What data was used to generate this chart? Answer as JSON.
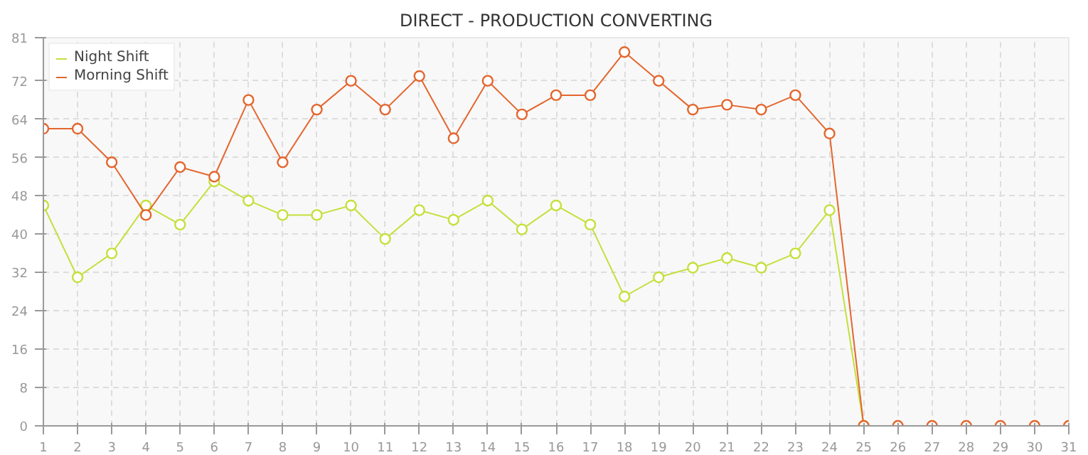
{
  "chart_data": {
    "type": "line",
    "title": "DIRECT - PRODUCTION CONVERTING",
    "x": [
      1,
      2,
      3,
      4,
      5,
      6,
      7,
      8,
      9,
      10,
      11,
      12,
      13,
      14,
      15,
      16,
      17,
      18,
      19,
      20,
      21,
      22,
      23,
      24,
      25,
      26,
      27,
      28,
      29,
      30,
      31
    ],
    "series": [
      {
        "name": "Night Shift",
        "color": "#c4e03c",
        "values": [
          46,
          31,
          36,
          46,
          42,
          51,
          47,
          44,
          44,
          46,
          39,
          45,
          43,
          47,
          41,
          46,
          42,
          27,
          31,
          33,
          35,
          33,
          36,
          45,
          0,
          null,
          null,
          null,
          null,
          null,
          null
        ]
      },
      {
        "name": "Morning Shift",
        "color": "#e4662e",
        "values": [
          62,
          62,
          55,
          44,
          54,
          52,
          68,
          55,
          66,
          72,
          66,
          73,
          60,
          72,
          65,
          69,
          69,
          78,
          72,
          66,
          67,
          66,
          69,
          61,
          0,
          0,
          0,
          0,
          0,
          0,
          0
        ]
      }
    ],
    "xlim": [
      1,
      31
    ],
    "xticks": [
      1,
      2,
      3,
      4,
      5,
      6,
      7,
      8,
      9,
      10,
      11,
      12,
      13,
      14,
      15,
      16,
      17,
      18,
      19,
      20,
      21,
      22,
      23,
      24,
      25,
      26,
      27,
      28,
      29,
      30,
      31
    ],
    "ylim": [
      0,
      81
    ],
    "yticks": [
      0,
      8,
      16,
      24,
      32,
      40,
      48,
      56,
      64,
      72,
      81
    ],
    "grid": true,
    "legend": "top left",
    "marker": "circle",
    "line_style": "solid"
  }
}
